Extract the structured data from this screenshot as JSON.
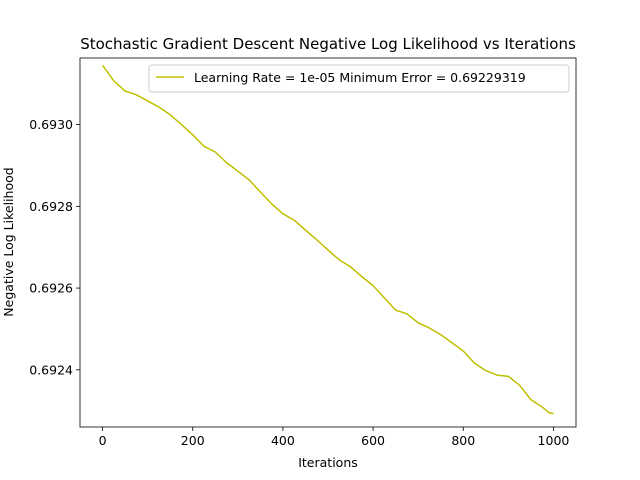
{
  "chart_data": {
    "type": "line",
    "title": "Stochastic Gradient Descent Negative Log Likelihood vs Iterations",
    "xlabel": "Iterations",
    "ylabel": "Negative Log Likelihood",
    "xlim": [
      -50,
      1050
    ],
    "ylim": [
      0.69226,
      0.693163
    ],
    "xticks": [
      0,
      200,
      400,
      600,
      800,
      1000
    ],
    "yticks": [
      0.6924,
      0.6926,
      0.6928,
      0.693
    ],
    "xtick_labels": [
      "0",
      "200",
      "400",
      "600",
      "800",
      "1000"
    ],
    "ytick_labels": [
      "0.6924",
      "0.6926",
      "0.6928",
      "0.6930"
    ],
    "legend_position": "upper right",
    "series": [
      {
        "name": "Learning Rate = 1e-05 Minimum Error = 0.69229319",
        "color": "#bfbf00",
        "x": [
          0,
          10,
          25,
          50,
          75,
          100,
          125,
          150,
          175,
          200,
          225,
          250,
          275,
          300,
          325,
          350,
          375,
          400,
          425,
          450,
          475,
          500,
          525,
          550,
          575,
          600,
          625,
          650,
          675,
          700,
          725,
          750,
          775,
          800,
          825,
          850,
          875,
          900,
          925,
          950,
          975,
          990,
          1000
        ],
        "y": [
          0.693145,
          0.69313,
          0.693107,
          0.693082,
          0.693073,
          0.693058,
          0.693043,
          0.693024,
          0.693,
          0.692975,
          0.692947,
          0.692933,
          0.692907,
          0.692886,
          0.692865,
          0.692835,
          0.692806,
          0.692782,
          0.692766,
          0.692742,
          0.692718,
          0.692693,
          0.692669,
          0.692652,
          0.692628,
          0.692606,
          0.692576,
          0.692546,
          0.692537,
          0.692515,
          0.692502,
          0.692486,
          0.692466,
          0.692446,
          0.692416,
          0.692398,
          0.692387,
          0.692384,
          0.692362,
          0.692327,
          0.692309,
          0.692295,
          0.692293
        ]
      }
    ]
  }
}
